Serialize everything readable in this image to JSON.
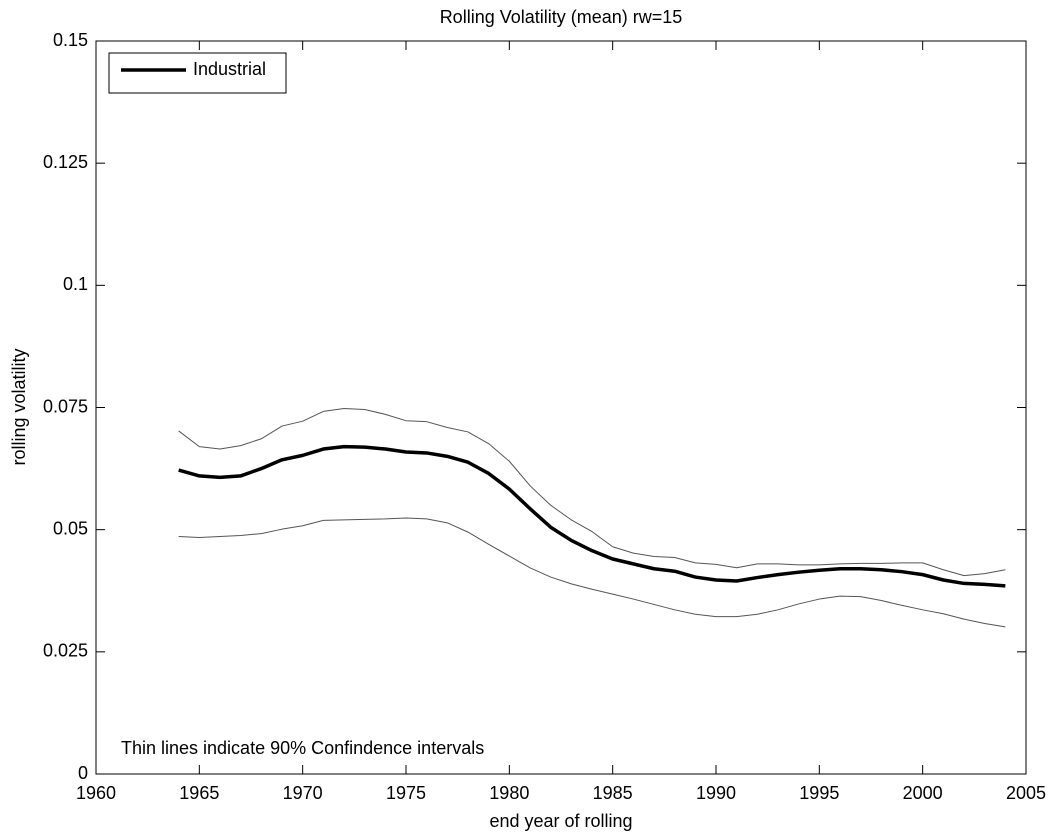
{
  "chart_data": {
    "type": "line",
    "title": "Rolling Volatility (mean) rw=15",
    "x_label": "end year of rolling",
    "y_label": "rolling volatility",
    "annotation": "Thin lines indicate 90% Confindence intervals",
    "legend": "top-left",
    "x": [
      1964,
      1965,
      1966,
      1967,
      1968,
      1969,
      1970,
      1971,
      1972,
      1973,
      1974,
      1975,
      1976,
      1977,
      1978,
      1979,
      1980,
      1981,
      1982,
      1983,
      1984,
      1985,
      1986,
      1987,
      1988,
      1989,
      1990,
      1991,
      1992,
      1993,
      1994,
      1995,
      1996,
      1997,
      1998,
      1999,
      2000,
      2001,
      2002,
      2003,
      2004
    ],
    "series": [
      {
        "name": "Industrial",
        "color": "#000000",
        "width": 3.5,
        "values": [
          0.0622,
          0.061,
          0.0607,
          0.061,
          0.0625,
          0.0643,
          0.0652,
          0.0665,
          0.067,
          0.0669,
          0.0665,
          0.0659,
          0.0657,
          0.065,
          0.0638,
          0.0615,
          0.0583,
          0.0543,
          0.0505,
          0.0478,
          0.0457,
          0.044,
          0.043,
          0.042,
          0.0415,
          0.0403,
          0.0397,
          0.0395,
          0.0402,
          0.0408,
          0.0413,
          0.0417,
          0.042,
          0.042,
          0.0418,
          0.0414,
          0.0408,
          0.0397,
          0.039,
          0.0388,
          0.0385
        ]
      },
      {
        "color": "#555555",
        "width": 1,
        "values": [
          0.0702,
          0.067,
          0.0665,
          0.0672,
          0.0686,
          0.0712,
          0.0722,
          0.0742,
          0.0748,
          0.0746,
          0.0736,
          0.0723,
          0.0721,
          0.0709,
          0.07,
          0.0676,
          0.064,
          0.059,
          0.055,
          0.052,
          0.0496,
          0.0465,
          0.0452,
          0.0445,
          0.0443,
          0.0432,
          0.0429,
          0.0422,
          0.043,
          0.043,
          0.0428,
          0.0428,
          0.043,
          0.0431,
          0.0431,
          0.0432,
          0.0432,
          0.0418,
          0.0406,
          0.041,
          0.0418
        ]
      },
      {
        "color": "#555555",
        "width": 1,
        "values": [
          0.0486,
          0.0484,
          0.0486,
          0.0488,
          0.0492,
          0.0501,
          0.0508,
          0.0519,
          0.052,
          0.0521,
          0.0522,
          0.0524,
          0.0522,
          0.0514,
          0.0495,
          0.047,
          0.0446,
          0.0422,
          0.0403,
          0.0389,
          0.0378,
          0.0368,
          0.0358,
          0.0347,
          0.0336,
          0.0327,
          0.0322,
          0.0322,
          0.0327,
          0.0336,
          0.0348,
          0.0358,
          0.0364,
          0.0363,
          0.0355,
          0.0345,
          0.0336,
          0.0328,
          0.0317,
          0.0308,
          0.0301
        ]
      }
    ],
    "xlim": [
      1960,
      2005
    ],
    "xticks": [
      1960,
      1965,
      1970,
      1975,
      1980,
      1985,
      1990,
      1995,
      2000,
      2005
    ],
    "ylim": [
      0,
      0.15
    ],
    "yticks": [
      0,
      0.025,
      0.05,
      0.075,
      0.1,
      0.125,
      0.15
    ],
    "grid": false
  }
}
